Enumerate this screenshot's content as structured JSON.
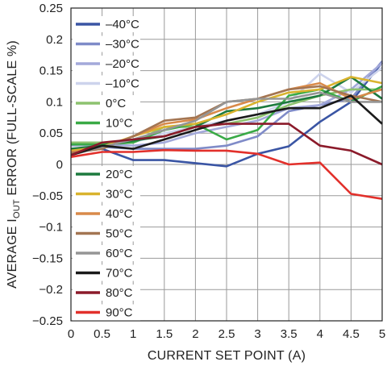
{
  "chart_data": {
    "type": "line",
    "xlabel": "CURRENT SET POINT (A)",
    "ylabel": "AVERAGE I OUT ERROR (FULL-SCALE %)",
    "ylabel_parts": {
      "before": "AVERAGE I",
      "sub": "OUT",
      "after": " ERROR (FULL-SCALE %)"
    },
    "xlim": [
      0,
      5
    ],
    "ylim": [
      -0.25,
      0.25
    ],
    "x_ticks": [
      "0",
      "0.5",
      "1",
      "1.5",
      "2",
      "2.5",
      "3",
      "3.5",
      "4",
      "4.5",
      "5"
    ],
    "y_ticks": [
      "0.25",
      "0.2",
      "0.15",
      "0.1",
      "0.05",
      "0",
      "-0.05",
      "-0.1",
      "-0.15",
      "-0.2",
      "-0.25"
    ],
    "grid": true,
    "legend": "left, two groups",
    "x": [
      0,
      0.5,
      1,
      1.5,
      2,
      2.5,
      3,
      3.5,
      4,
      4.5,
      5
    ],
    "series": [
      {
        "name": "–40°C",
        "color": "#3a55a4",
        "values": [
          0.02,
          0.025,
          0.007,
          0.007,
          0.002,
          -0.003,
          0.017,
          0.029,
          0.068,
          0.1,
          0.163
        ]
      },
      {
        "name": "–30°C",
        "color": "#7f8bc8",
        "values": [
          0.025,
          0.028,
          0.025,
          0.025,
          0.025,
          0.03,
          0.045,
          0.085,
          0.095,
          0.105,
          0.165
        ]
      },
      {
        "name": "–20°C",
        "color": "#a3a9da",
        "values": [
          0.03,
          0.032,
          0.03,
          0.035,
          0.05,
          0.06,
          0.07,
          0.09,
          0.095,
          0.12,
          0.162
        ]
      },
      {
        "name": "–10°C",
        "color": "#cdd3ec",
        "values": [
          0.033,
          0.035,
          0.035,
          0.05,
          0.06,
          0.07,
          0.08,
          0.1,
          0.145,
          0.115,
          0.155
        ]
      },
      {
        "name": "0°C",
        "color": "#8dc26f",
        "values": [
          0.035,
          0.035,
          0.035,
          0.06,
          0.06,
          0.065,
          0.075,
          0.095,
          0.11,
          0.12,
          0.12
        ]
      },
      {
        "name": "10°C",
        "color": "#3aaa46",
        "values": [
          0.032,
          0.032,
          0.035,
          0.055,
          0.065,
          0.04,
          0.055,
          0.11,
          0.12,
          0.1,
          0.125
        ]
      },
      {
        "name": "20°C",
        "color": "#1d7a3e",
        "values": [
          0.025,
          0.03,
          0.038,
          0.045,
          0.06,
          0.085,
          0.09,
          0.1,
          0.11,
          0.14,
          0.105
        ]
      },
      {
        "name": "30°C",
        "color": "#d9b32e",
        "values": [
          0.022,
          0.028,
          0.045,
          0.06,
          0.065,
          0.08,
          0.1,
          0.115,
          0.12,
          0.14,
          0.13
        ]
      },
      {
        "name": "40°C",
        "color": "#d98a4a",
        "values": [
          0.02,
          0.025,
          0.045,
          0.065,
          0.072,
          0.09,
          0.105,
          0.12,
          0.13,
          0.105,
          0.12
        ]
      },
      {
        "name": "50°C",
        "color": "#a37552",
        "values": [
          0.018,
          0.025,
          0.045,
          0.07,
          0.075,
          0.1,
          0.105,
          0.12,
          0.125,
          0.11,
          0.1
        ]
      },
      {
        "name": "60°C",
        "color": "#959595",
        "values": [
          0.015,
          0.028,
          0.04,
          0.055,
          0.07,
          0.1,
          0.105,
          0.105,
          0.115,
          0.1,
          0.1
        ]
      },
      {
        "name": "70°C",
        "color": "#1a1a1a",
        "values": [
          0.015,
          0.03,
          0.025,
          0.04,
          0.055,
          0.07,
          0.08,
          0.09,
          0.09,
          0.11,
          0.065
        ]
      },
      {
        "name": "80°C",
        "color": "#8b1a2a",
        "values": [
          0.015,
          0.035,
          0.04,
          0.045,
          0.06,
          0.065,
          0.065,
          0.065,
          0.03,
          0.022,
          0.0
        ]
      },
      {
        "name": "90°C",
        "color": "#e2302b",
        "values": [
          0.012,
          0.02,
          0.02,
          0.023,
          0.022,
          0.022,
          0.017,
          0.0,
          0.003,
          -0.047,
          -0.055
        ]
      }
    ]
  }
}
